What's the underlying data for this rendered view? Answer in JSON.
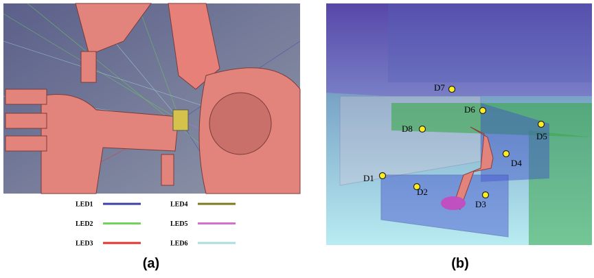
{
  "panels": [
    {
      "caption": "(a)",
      "legend": [
        {
          "label": "LED1",
          "color": "#3b3fa8"
        },
        {
          "label": "LED2",
          "color": "#6fd45a"
        },
        {
          "label": "LED3",
          "color": "#e0342f"
        },
        {
          "label": "LED4",
          "color": "#7c7a1e"
        },
        {
          "label": "LED5",
          "color": "#d46fd0"
        },
        {
          "label": "LED6",
          "color": "#a8dede"
        }
      ]
    },
    {
      "caption": "(b)",
      "markers": [
        {
          "label": "D1"
        },
        {
          "label": "D2"
        },
        {
          "label": "D3"
        },
        {
          "label": "D4"
        },
        {
          "label": "D5"
        },
        {
          "label": "D6"
        },
        {
          "label": "D7"
        },
        {
          "label": "D8"
        }
      ]
    }
  ]
}
